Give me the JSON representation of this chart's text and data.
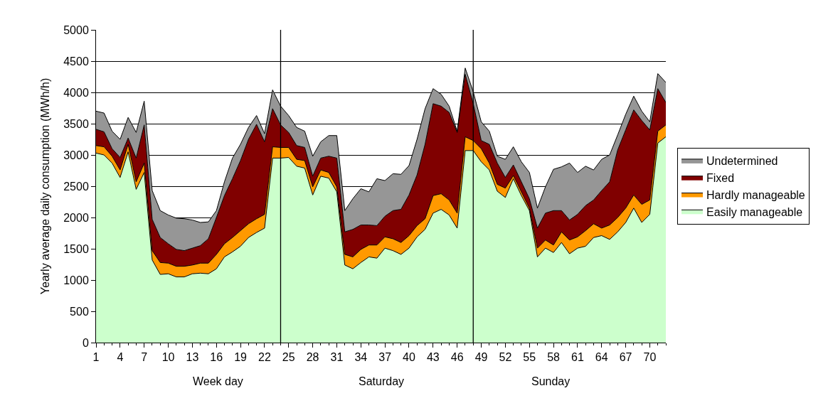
{
  "chart_data": {
    "type": "area",
    "stacked": true,
    "ylabel": "Yearly average daily consumption (MWh/h)",
    "x": [
      1,
      2,
      3,
      4,
      5,
      6,
      7,
      8,
      9,
      10,
      11,
      12,
      13,
      14,
      15,
      16,
      17,
      18,
      19,
      20,
      21,
      22,
      23,
      24,
      25,
      26,
      27,
      28,
      29,
      30,
      31,
      32,
      33,
      34,
      35,
      36,
      37,
      38,
      39,
      40,
      41,
      42,
      43,
      44,
      45,
      46,
      47,
      48,
      49,
      50,
      51,
      52,
      53,
      54,
      55,
      56,
      57,
      58,
      59,
      60,
      61,
      62,
      63,
      64,
      65,
      66,
      67,
      68,
      69,
      70,
      71,
      72
    ],
    "series": [
      {
        "name": "Easily manageable",
        "color": "#ccffcc",
        "values": [
          3030,
          3000,
          2870,
          2640,
          3050,
          2450,
          2720,
          1320,
          1090,
          1100,
          1050,
          1050,
          1100,
          1110,
          1100,
          1180,
          1370,
          1450,
          1540,
          1680,
          1760,
          1830,
          2950,
          2950,
          2960,
          2820,
          2790,
          2360,
          2660,
          2630,
          2410,
          1240,
          1180,
          1280,
          1370,
          1350,
          1510,
          1470,
          1410,
          1510,
          1690,
          1810,
          2070,
          2130,
          2040,
          1830,
          3070,
          3070,
          2890,
          2760,
          2420,
          2320,
          2620,
          2350,
          2110,
          1370,
          1510,
          1440,
          1600,
          1420,
          1510,
          1540,
          1680,
          1710,
          1650,
          1770,
          1920,
          2150,
          1920,
          2050,
          3190,
          3290
        ]
      },
      {
        "name": "Hardly manageable",
        "color": "#ff9900",
        "values": [
          120,
          130,
          110,
          120,
          120,
          120,
          150,
          150,
          190,
          170,
          170,
          170,
          140,
          160,
          170,
          230,
          210,
          230,
          250,
          220,
          220,
          220,
          180,
          170,
          160,
          110,
          120,
          130,
          100,
          90,
          80,
          170,
          190,
          210,
          190,
          210,
          180,
          190,
          190,
          200,
          180,
          170,
          280,
          250,
          240,
          240,
          220,
          160,
          210,
          110,
          110,
          150,
          50,
          60,
          40,
          140,
          130,
          120,
          170,
          220,
          180,
          250,
          220,
          120,
          230,
          230,
          230,
          210,
          290,
          230,
          190,
          190
        ]
      },
      {
        "name": "Fixed",
        "color": "#800000",
        "values": [
          260,
          240,
          120,
          200,
          100,
          380,
          610,
          500,
          400,
          310,
          270,
          250,
          270,
          280,
          390,
          590,
          770,
          940,
          1120,
          1350,
          1510,
          1160,
          610,
          360,
          240,
          220,
          210,
          170,
          190,
          260,
          460,
          360,
          440,
          390,
          320,
          310,
          330,
          450,
          530,
          650,
          810,
          1190,
          1470,
          1400,
          1400,
          1290,
          1000,
          590,
          130,
          300,
          340,
          170,
          170,
          160,
          150,
          320,
          430,
          550,
          340,
          320,
          360,
          400,
          380,
          600,
          690,
          1080,
          1250,
          1360,
          1340,
          1120,
          680,
          360
        ]
      },
      {
        "name": "Undetermined",
        "color": "#969696",
        "values": [
          290,
          300,
          280,
          290,
          330,
          410,
          380,
          460,
          430,
          460,
          500,
          510,
          450,
          370,
          270,
          110,
          220,
          330,
          260,
          190,
          140,
          130,
          300,
          300,
          270,
          290,
          260,
          320,
          260,
          330,
          360,
          340,
          490,
          580,
          530,
          750,
          570,
          590,
          560,
          470,
          570,
          570,
          240,
          190,
          100,
          20,
          100,
          190,
          300,
          210,
          110,
          290,
          290,
          320,
          420,
          320,
          420,
          660,
          700,
          910,
          670,
          630,
          480,
          500,
          430,
          240,
          250,
          220,
          150,
          130,
          240,
          320
        ]
      }
    ],
    "xlim": [
      1,
      72
    ],
    "xticks": [
      1,
      4,
      7,
      10,
      13,
      16,
      19,
      22,
      25,
      28,
      31,
      34,
      37,
      40,
      43,
      46,
      49,
      52,
      55,
      58,
      61,
      64,
      67,
      70
    ],
    "ylim": [
      0,
      5000
    ],
    "yticks": [
      0,
      500,
      1000,
      1500,
      2000,
      2500,
      3000,
      3500,
      4000,
      4500,
      5000
    ],
    "ref_lines": [
      {
        "axis": "x",
        "value": 24,
        "color": "#000000"
      },
      {
        "axis": "x",
        "value": 48,
        "color": "#000000"
      }
    ],
    "annotations": [
      "Week day",
      "Saturday",
      "Sunday"
    ],
    "grid": "y",
    "legend": "right"
  }
}
